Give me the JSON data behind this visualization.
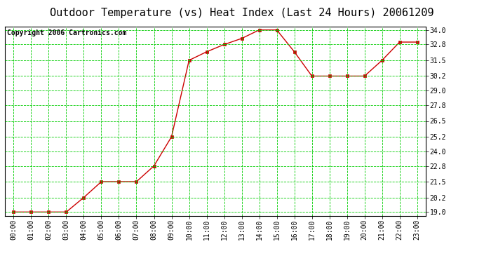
{
  "title": "Outdoor Temperature (vs) Heat Index (Last 24 Hours) 20061209",
  "copyright_text": "Copyright 2006 Cartronics.com",
  "x_labels": [
    "00:00",
    "01:00",
    "02:00",
    "03:00",
    "04:00",
    "05:00",
    "06:00",
    "07:00",
    "08:00",
    "09:00",
    "10:00",
    "11:00",
    "12:00",
    "13:00",
    "14:00",
    "15:00",
    "16:00",
    "17:00",
    "18:00",
    "19:00",
    "20:00",
    "21:00",
    "22:00",
    "23:00"
  ],
  "y_values": [
    19.0,
    19.0,
    19.0,
    19.0,
    20.2,
    21.5,
    21.5,
    21.5,
    22.8,
    25.2,
    31.5,
    32.2,
    32.8,
    33.3,
    34.0,
    34.0,
    32.2,
    30.2,
    30.2,
    30.2,
    30.2,
    31.5,
    33.0,
    33.0
  ],
  "y_ticks": [
    19.0,
    20.2,
    21.5,
    22.8,
    24.0,
    25.2,
    26.5,
    27.8,
    29.0,
    30.2,
    31.5,
    32.8,
    34.0
  ],
  "ylim": [
    18.7,
    34.3
  ],
  "line_color": "#cc0000",
  "marker_color": "#cc0000",
  "bg_color": "#ffffff",
  "plot_bg_color": "#ffffff",
  "grid_color": "#00cc00",
  "title_fontsize": 11,
  "copyright_fontsize": 7,
  "tick_fontsize": 7
}
